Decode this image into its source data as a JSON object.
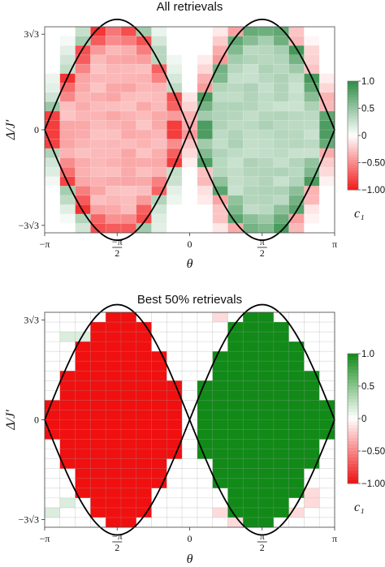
{
  "chart_data": [
    {
      "type": "heatmap",
      "title": "All retrievals",
      "xlabel": "θ",
      "ylabel": "Δ/J′",
      "xlim": [
        -3.1416,
        3.1416
      ],
      "ylim": [
        -5.6,
        5.6
      ],
      "x_tick_labels": [
        "−π",
        "−π/2",
        "0",
        "π/2",
        "π"
      ],
      "y_tick_labels": [
        "3√3",
        "0",
        "−3√3"
      ],
      "grid_shape": [
        22,
        19
      ],
      "boundary": "Δ/J′ = ±6·|sin θ|",
      "color_label": "c₁",
      "color_range": [
        -1.0,
        1.0
      ],
      "colorbar_tick_labels": [
        "1.0",
        "0.5",
        "0",
        "−0.50",
        "−1.00"
      ],
      "colors": {
        "positive": "#2e8b45",
        "negative": "#f21b1b",
        "zero": "#ffffff"
      },
      "values_description_inside_left_lobe": -0.55,
      "values_description_inside_right_lobe": 0.55
    },
    {
      "type": "heatmap",
      "title": "Best 50% retrievals",
      "xlabel": "θ",
      "ylabel": "Δ/J′",
      "xlim": [
        -3.1416,
        3.1416
      ],
      "ylim": [
        -5.6,
        5.6
      ],
      "x_tick_labels": [
        "−π",
        "−π/2",
        "0",
        "π/2",
        "π"
      ],
      "y_tick_labels": [
        "3√3",
        "0",
        "−3√3"
      ],
      "grid_shape": [
        22,
        19
      ],
      "boundary": "Δ/J′ = ±6·|sin θ|",
      "color_label": "c₁",
      "color_range": [
        -1.0,
        1.0
      ],
      "colorbar_tick_labels": [
        "1.0",
        "0.5",
        "0",
        "−0.50",
        "−1.00"
      ],
      "colors": {
        "positive": "#118a18",
        "negative": "#f01010",
        "zero": "#ffffff"
      },
      "values_description_inside_left_lobe": -1.0,
      "values_description_inside_right_lobe": 1.0
    }
  ]
}
